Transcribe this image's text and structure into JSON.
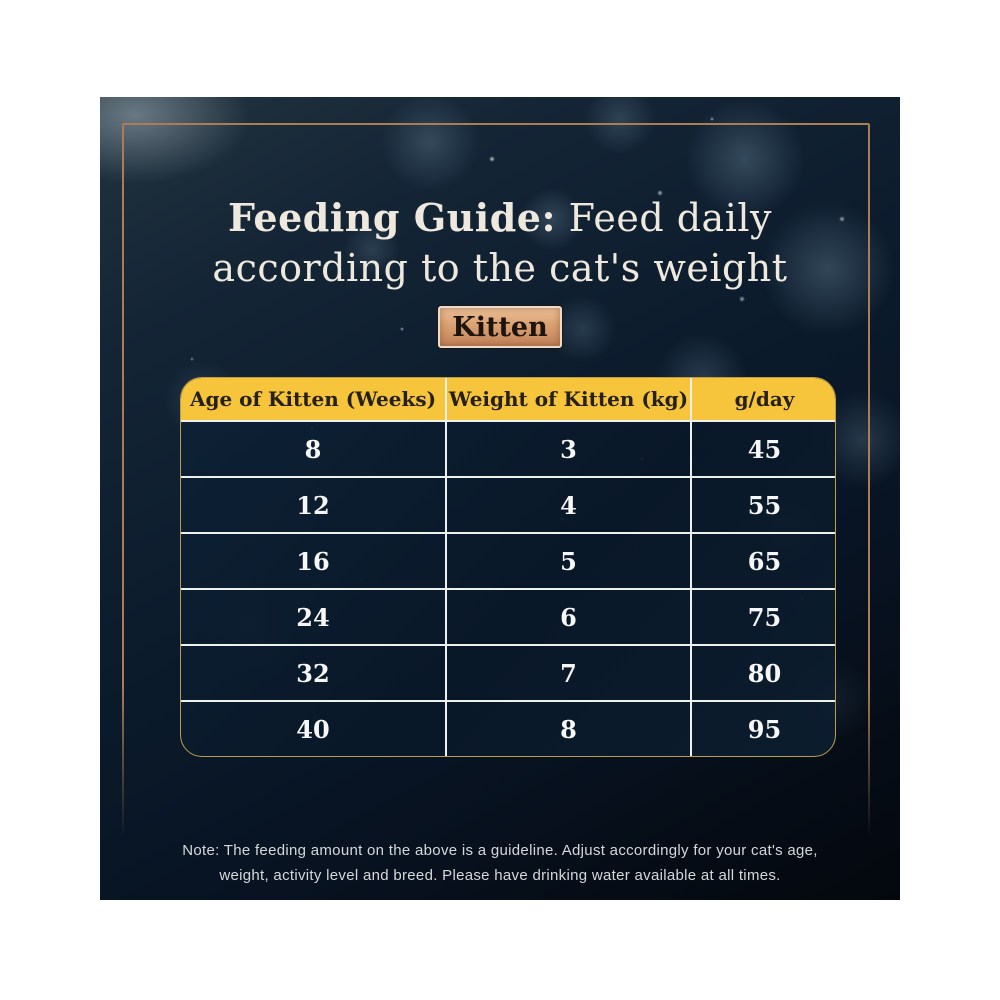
{
  "title": {
    "bold": "Feeding Guide:",
    "line1_rest": " Feed daily",
    "line2": "according to the cat's weight"
  },
  "badge": {
    "label": "Kitten"
  },
  "table": {
    "headers": [
      "Age of Kitten (Weeks)",
      "Weight of Kitten (kg)",
      "g/day"
    ],
    "rows": [
      [
        "8",
        "3",
        "45"
      ],
      [
        "12",
        "4",
        "55"
      ],
      [
        "16",
        "5",
        "65"
      ],
      [
        "24",
        "6",
        "75"
      ],
      [
        "32",
        "7",
        "80"
      ],
      [
        "40",
        "8",
        "95"
      ]
    ]
  },
  "note": {
    "line1": "Note: The feeding amount on the above is a guideline. Adjust accordingly for your cat's age,",
    "line2": "weight, activity level and breed. Please have drinking water available at all times."
  },
  "colors": {
    "header_yellow": "#f6c53c",
    "cell_navy": "#0d2136",
    "divider_white": "#eef0ee",
    "table_outline_gold": "#bb9c4c",
    "frame_tan": "#aa7e52",
    "badge_copper": "#dca474",
    "title_cream": "#efe9dd",
    "panel_dark": "#0a1523"
  },
  "chart_data": {
    "type": "table",
    "title": "Feeding Guide: Feed daily according to the cat's weight",
    "group_label": "Kitten",
    "columns": [
      "Age of Kitten (Weeks)",
      "Weight of Kitten (kg)",
      "g/day"
    ],
    "rows": [
      [
        8,
        3,
        45
      ],
      [
        12,
        4,
        55
      ],
      [
        16,
        5,
        65
      ],
      [
        24,
        6,
        75
      ],
      [
        32,
        7,
        80
      ],
      [
        40,
        8,
        95
      ]
    ],
    "note": "Note: The feeding amount on the above is a guideline. Adjust accordingly for your cat's age, weight, activity level and breed. Please have drinking water available at all times."
  }
}
